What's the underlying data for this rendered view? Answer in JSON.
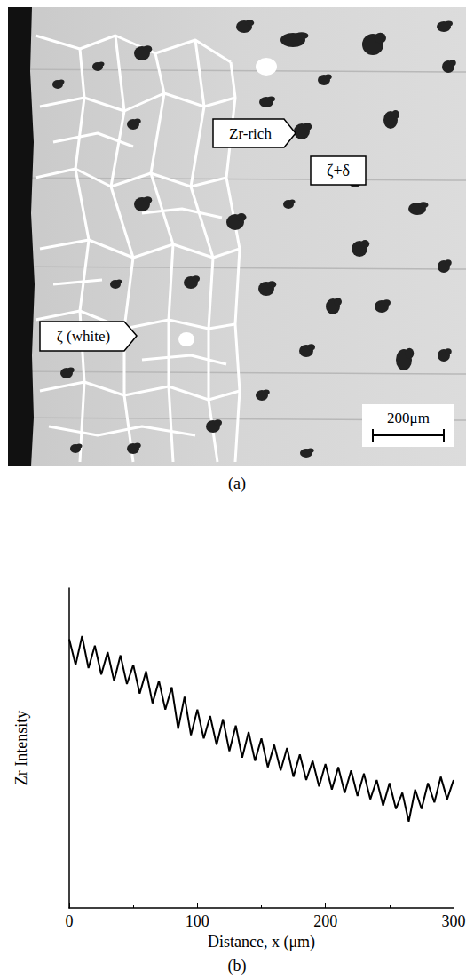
{
  "micrograph": {
    "label": "(a)",
    "annotations": [
      "Zr-rich",
      "ζ+δ",
      "ζ (white)"
    ],
    "scale_bar": "200μm"
  },
  "chart_data": {
    "type": "line",
    "label": "(b)",
    "x_label": "Distance, x (μm)",
    "y_label": "Zr Intensity",
    "x": [
      0,
      5,
      10,
      15,
      20,
      25,
      30,
      35,
      40,
      45,
      50,
      55,
      60,
      65,
      70,
      75,
      80,
      85,
      90,
      95,
      100,
      105,
      110,
      115,
      120,
      125,
      130,
      135,
      140,
      145,
      150,
      155,
      160,
      165,
      170,
      175,
      180,
      185,
      190,
      195,
      200,
      205,
      210,
      215,
      220,
      225,
      230,
      235,
      240,
      245,
      250,
      255,
      260,
      265,
      270,
      275,
      280,
      285,
      290,
      295,
      300
    ],
    "series": [
      {
        "name": "Zr",
        "color": "#000000",
        "values": [
          0.84,
          0.76,
          0.85,
          0.75,
          0.82,
          0.73,
          0.8,
          0.71,
          0.79,
          0.7,
          0.76,
          0.67,
          0.74,
          0.64,
          0.71,
          0.62,
          0.69,
          0.56,
          0.66,
          0.54,
          0.62,
          0.53,
          0.6,
          0.51,
          0.59,
          0.49,
          0.57,
          0.47,
          0.55,
          0.46,
          0.53,
          0.44,
          0.51,
          0.43,
          0.5,
          0.41,
          0.48,
          0.4,
          0.46,
          0.38,
          0.45,
          0.37,
          0.44,
          0.36,
          0.43,
          0.35,
          0.42,
          0.34,
          0.4,
          0.32,
          0.39,
          0.31,
          0.36,
          0.27,
          0.37,
          0.31,
          0.39,
          0.33,
          0.41,
          0.34,
          0.4
        ]
      }
    ],
    "xlim": [
      0,
      300
    ],
    "xticks": [
      0,
      100,
      200,
      300
    ],
    "ylim": [
      0,
      1
    ],
    "grid": false,
    "tick_labels": "x"
  }
}
